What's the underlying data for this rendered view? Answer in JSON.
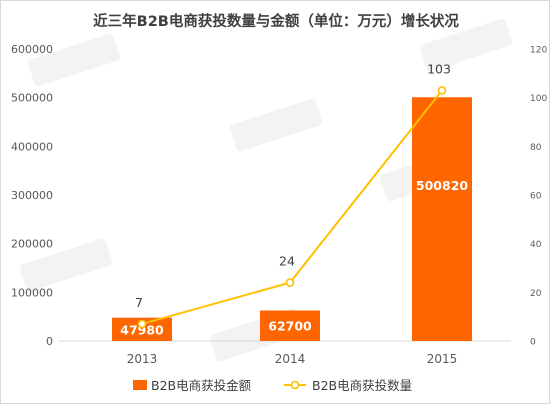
{
  "chart_data": {
    "type": "bar",
    "title": "近三年B2B电商获投数量与金额（单位：万元）增长状况",
    "categories": [
      "2013",
      "2014",
      "2015"
    ],
    "series": [
      {
        "name": "B2B电商获投金额",
        "kind": "bar",
        "axis": "left",
        "values": [
          47980,
          62700,
          500820
        ],
        "labels": [
          "47980",
          "62700",
          "500820"
        ],
        "color": "#ff6600"
      },
      {
        "name": "B2B电商获投数量",
        "kind": "line",
        "axis": "right",
        "values": [
          7,
          24,
          103
        ],
        "labels": [
          "7",
          "24",
          "103"
        ],
        "color": "#ffc000"
      }
    ],
    "y_left": {
      "ylim": [
        0,
        600000
      ],
      "ticks": [
        "0",
        "100000",
        "200000",
        "300000",
        "400000",
        "500000",
        "600000"
      ]
    },
    "y_right": {
      "ylim": [
        0,
        120
      ],
      "ticks": [
        "0",
        "20",
        "40",
        "60",
        "80",
        "100",
        "120"
      ]
    },
    "grid": false,
    "legend": "bottom"
  }
}
